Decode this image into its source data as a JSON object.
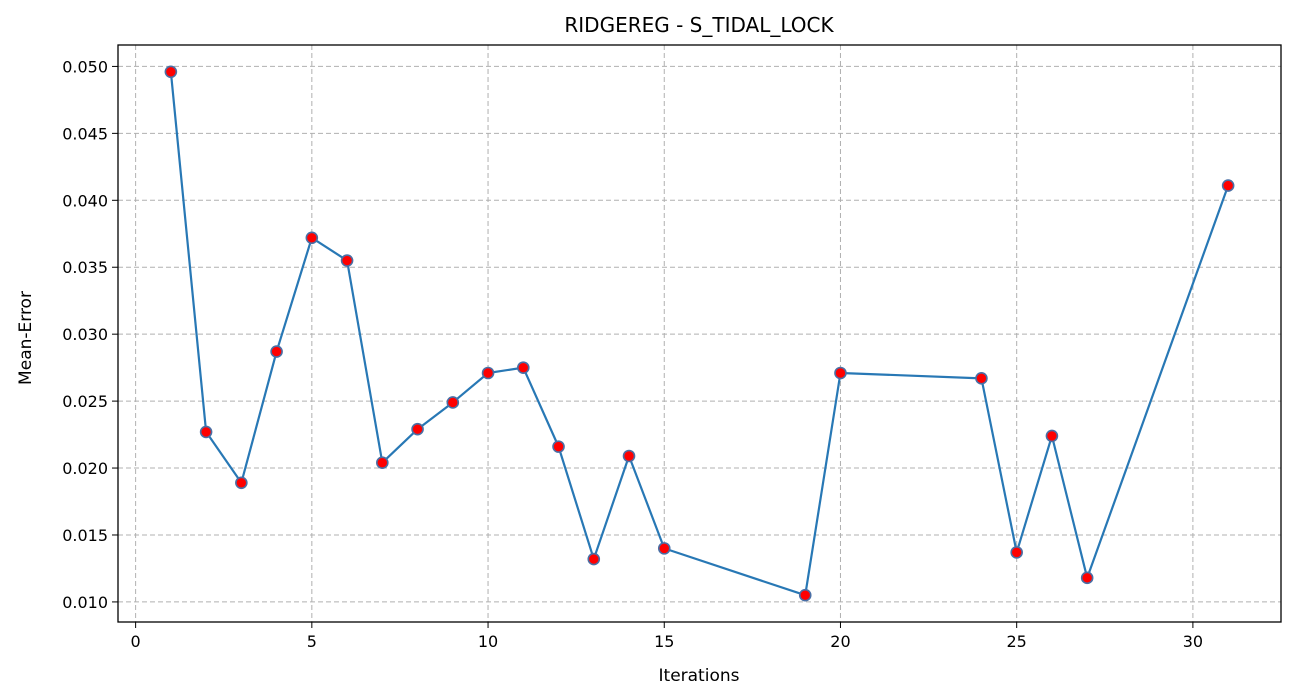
{
  "chart_data": {
    "type": "line",
    "title": "RIDGEREG - S_TIDAL_LOCK",
    "xlabel": "Iterations",
    "ylabel": "Mean-Error",
    "xlim": [
      -0.5,
      32.5
    ],
    "ylim": [
      0.0085,
      0.0516
    ],
    "xticks": [
      0,
      5,
      10,
      15,
      20,
      25,
      30
    ],
    "yticks": [
      0.01,
      0.015,
      0.02,
      0.025,
      0.03,
      0.035,
      0.04,
      0.045,
      0.05
    ],
    "xtick_labels": [
      "0",
      "5",
      "10",
      "15",
      "20",
      "25",
      "30"
    ],
    "ytick_labels": [
      "0.010",
      "0.015",
      "0.020",
      "0.025",
      "0.030",
      "0.035",
      "0.040",
      "0.045",
      "0.050"
    ],
    "grid": true,
    "series": [
      {
        "x": [
          1,
          2,
          3,
          4,
          5,
          6,
          7,
          8,
          9,
          10,
          11,
          12,
          13,
          14,
          15,
          19,
          20,
          24,
          25,
          26,
          27,
          31
        ],
        "y": [
          0.0496,
          0.0227,
          0.0189,
          0.0287,
          0.0372,
          0.0355,
          0.0204,
          0.0229,
          0.0249,
          0.0271,
          0.0275,
          0.0216,
          0.0132,
          0.0209,
          0.014,
          0.0105,
          0.0271,
          0.0267,
          0.0137,
          0.0224,
          0.0118,
          0.0411
        ],
        "line_color": "#2878b5",
        "marker_face": "#ff0000",
        "marker_edge": "#4a6fa5"
      }
    ]
  }
}
